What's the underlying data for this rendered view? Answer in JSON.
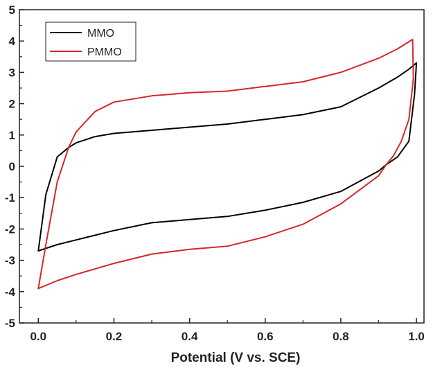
{
  "chart_data": {
    "type": "line",
    "title": "",
    "xlabel": "Potential (V vs. SCE)",
    "ylabel": "",
    "xlim": [
      -0.05,
      1.02
    ],
    "ylim": [
      -5,
      5
    ],
    "xticks": [
      0.0,
      0.2,
      0.4,
      0.6,
      0.8,
      1.0
    ],
    "xtick_labels": [
      "0.0",
      "0.2",
      "0.4",
      "0.6",
      "0.8",
      "1.0"
    ],
    "yticks": [
      -5,
      -4,
      -3,
      -2,
      -1,
      0,
      1,
      2,
      3,
      4,
      5
    ],
    "ytick_labels": [
      "-5",
      "-4",
      "-3",
      "-2",
      "-1",
      "0",
      "1",
      "2",
      "3",
      "4",
      "5"
    ],
    "grid": false,
    "legend_position": "top-left",
    "series": [
      {
        "name": "MMO",
        "color": "#000000",
        "x": [
          0.0,
          0.02,
          0.05,
          0.08,
          0.1,
          0.15,
          0.2,
          0.3,
          0.4,
          0.5,
          0.6,
          0.7,
          0.8,
          0.9,
          0.95,
          0.98,
          1.0,
          0.995,
          0.98,
          0.95,
          0.92,
          0.9,
          0.8,
          0.7,
          0.6,
          0.5,
          0.4,
          0.3,
          0.2,
          0.1,
          0.05,
          0.0
        ],
        "y": [
          -2.7,
          -0.9,
          0.3,
          0.6,
          0.75,
          0.95,
          1.05,
          1.15,
          1.25,
          1.35,
          1.5,
          1.65,
          1.9,
          2.5,
          2.85,
          3.1,
          3.3,
          2.3,
          0.8,
          0.3,
          0.05,
          -0.15,
          -0.8,
          -1.15,
          -1.4,
          -1.6,
          -1.7,
          -1.8,
          -2.05,
          -2.35,
          -2.5,
          -2.7
        ]
      },
      {
        "name": "PMMO",
        "color": "#d62728",
        "x": [
          0.0,
          0.02,
          0.05,
          0.08,
          0.1,
          0.15,
          0.2,
          0.3,
          0.4,
          0.5,
          0.6,
          0.7,
          0.8,
          0.9,
          0.95,
          0.99,
          0.992,
          0.98,
          0.96,
          0.94,
          0.92,
          0.9,
          0.8,
          0.7,
          0.6,
          0.5,
          0.4,
          0.3,
          0.2,
          0.1,
          0.05,
          0.0
        ],
        "y": [
          -3.9,
          -2.5,
          -0.5,
          0.6,
          1.1,
          1.75,
          2.05,
          2.25,
          2.35,
          2.4,
          2.55,
          2.7,
          3.0,
          3.45,
          3.75,
          4.05,
          2.8,
          1.5,
          0.8,
          0.35,
          0.05,
          -0.3,
          -1.2,
          -1.85,
          -2.25,
          -2.55,
          -2.65,
          -2.8,
          -3.1,
          -3.45,
          -3.65,
          -3.9
        ]
      }
    ]
  }
}
